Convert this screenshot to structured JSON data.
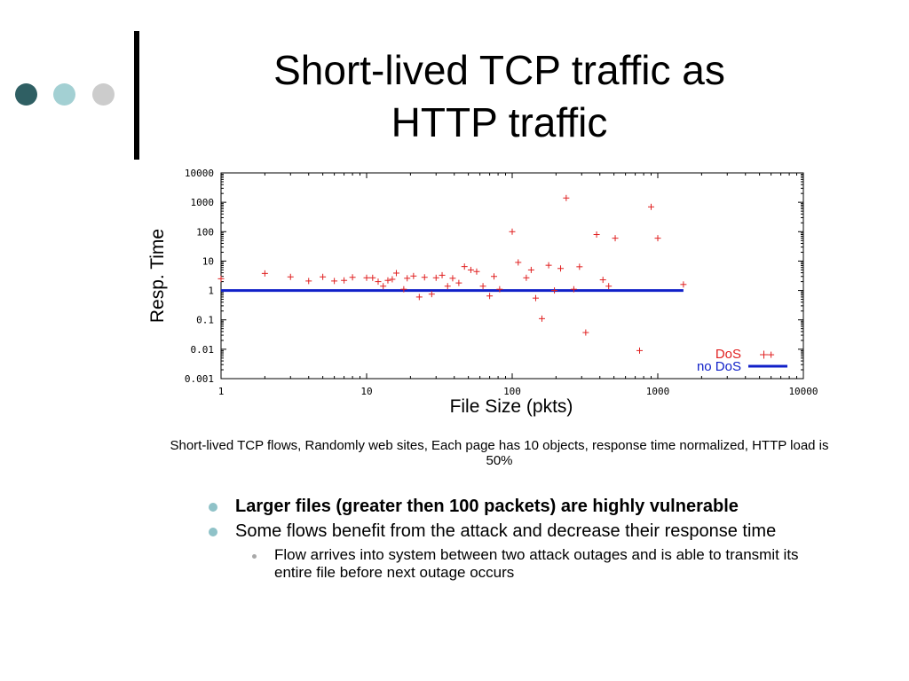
{
  "slide": {
    "title": "Short-lived TCP traffic as\nHTTP traffic",
    "caption": "Short-lived TCP flows, Randomly web sites,  Each page has 10 objects, response time normalized, HTTP load is 50%",
    "bullets": [
      {
        "text": "Larger files (greater then 100 packets) are highly vulnerable",
        "bold": true
      },
      {
        "text": "Some flows benefit from the attack and decrease their response time",
        "bold": false
      }
    ],
    "sub_bullet": "Flow arrives into system between two attack outages and is able to transmit its entire file before next outage occurs",
    "colors": {
      "dark_dot": "#2f5f63",
      "light_dot": "#a3d0d3",
      "grey_dot": "#cccccc",
      "bullet": "#8fc2c8"
    }
  },
  "chart_data": {
    "type": "scatter",
    "title": "",
    "xlabel": "File Size (pkts)",
    "ylabel": "Resp. Time",
    "x_scale": "log",
    "y_scale": "log",
    "xlim": [
      1,
      10000
    ],
    "ylim": [
      0.001,
      10000
    ],
    "x_ticks": [
      "1",
      "10",
      "100",
      "1000",
      "10000"
    ],
    "y_ticks": [
      "0.001",
      "0.01",
      "0.1",
      "1",
      "10",
      "100",
      "1000",
      "10000"
    ],
    "grid": false,
    "legend_position": "bottom-right",
    "series": [
      {
        "name": "DoS",
        "color": "#e02020",
        "marker": "+",
        "points": [
          [
            1,
            2.5
          ],
          [
            2,
            3.8
          ],
          [
            3,
            2.9
          ],
          [
            4,
            2.1
          ],
          [
            5,
            2.9
          ],
          [
            6,
            2.1
          ],
          [
            7,
            2.2
          ],
          [
            8,
            2.8
          ],
          [
            10,
            2.7
          ],
          [
            11,
            2.7
          ],
          [
            12,
            2.0
          ],
          [
            13,
            1.4
          ],
          [
            14,
            2.2
          ],
          [
            15,
            2.4
          ],
          [
            16,
            3.9
          ],
          [
            18,
            1.1
          ],
          [
            19,
            2.6
          ],
          [
            21,
            3.1
          ],
          [
            23,
            0.6
          ],
          [
            25,
            2.8
          ],
          [
            28,
            0.75
          ],
          [
            30,
            2.7
          ],
          [
            33,
            3.3
          ],
          [
            36,
            1.4
          ],
          [
            39,
            2.6
          ],
          [
            43,
            1.8
          ],
          [
            47,
            6.5
          ],
          [
            52,
            5.0
          ],
          [
            57,
            4.4
          ],
          [
            63,
            1.4
          ],
          [
            70,
            0.65
          ],
          [
            75,
            3.0
          ],
          [
            82,
            1.1
          ],
          [
            100,
            100
          ],
          [
            110,
            9.0
          ],
          [
            125,
            2.7
          ],
          [
            135,
            5.0
          ],
          [
            145,
            0.55
          ],
          [
            160,
            0.11
          ],
          [
            178,
            7.2
          ],
          [
            195,
            1.0
          ],
          [
            215,
            5.6
          ],
          [
            235,
            1400
          ],
          [
            265,
            1.1
          ],
          [
            290,
            6.4
          ],
          [
            320,
            0.037
          ],
          [
            380,
            80
          ],
          [
            420,
            2.3
          ],
          [
            460,
            1.4
          ],
          [
            510,
            60
          ],
          [
            750,
            0.009
          ],
          [
            900,
            700
          ],
          [
            1000,
            60
          ],
          [
            1500,
            1.6
          ],
          [
            6000,
            0.0065
          ]
        ]
      },
      {
        "name": "no DoS",
        "color": "#1020c8",
        "points": [
          [
            1,
            1
          ],
          [
            1500,
            1
          ]
        ]
      }
    ]
  }
}
